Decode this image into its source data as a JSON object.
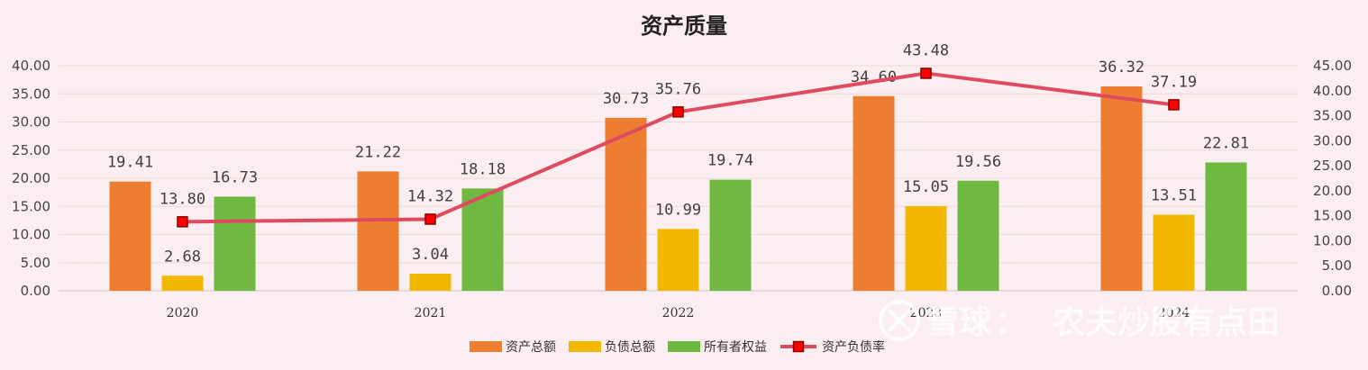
{
  "chart_data": {
    "type": "bar",
    "title": "资产质量",
    "categories": [
      "2020",
      "2021",
      "2022",
      "2023",
      "2024"
    ],
    "series": [
      {
        "name": "资产总额",
        "type": "bar",
        "axis": "left",
        "color": "#ed7d31",
        "values": [
          19.41,
          21.22,
          30.73,
          34.6,
          36.32
        ]
      },
      {
        "name": "负债总额",
        "type": "bar",
        "axis": "left",
        "color": "#f2b800",
        "values": [
          2.68,
          3.04,
          10.99,
          15.05,
          13.51
        ]
      },
      {
        "name": "所有者权益",
        "type": "bar",
        "axis": "left",
        "color": "#70b940",
        "values": [
          16.73,
          18.18,
          19.74,
          19.56,
          22.81
        ]
      },
      {
        "name": "资产负债率",
        "type": "line",
        "axis": "right",
        "color": "#e04a5e",
        "marker_color": "#ff0000",
        "values": [
          13.8,
          14.32,
          35.76,
          43.48,
          37.19
        ]
      }
    ],
    "ylim_left": [
      0,
      40
    ],
    "ylim_right": [
      0,
      45
    ],
    "yticks_left": [
      "0.00",
      "5.00",
      "10.00",
      "15.00",
      "20.00",
      "25.00",
      "30.00",
      "35.00",
      "40.00"
    ],
    "yticks_right": [
      "0.00",
      "5.00",
      "10.00",
      "15.00",
      "20.00",
      "25.00",
      "30.00",
      "35.00",
      "40.00",
      "45.00"
    ],
    "grid": true,
    "legend": "bottom-center"
  },
  "watermark": {
    "brand": "雪球",
    "separator": "：",
    "author": "农夫炒股有点田"
  }
}
